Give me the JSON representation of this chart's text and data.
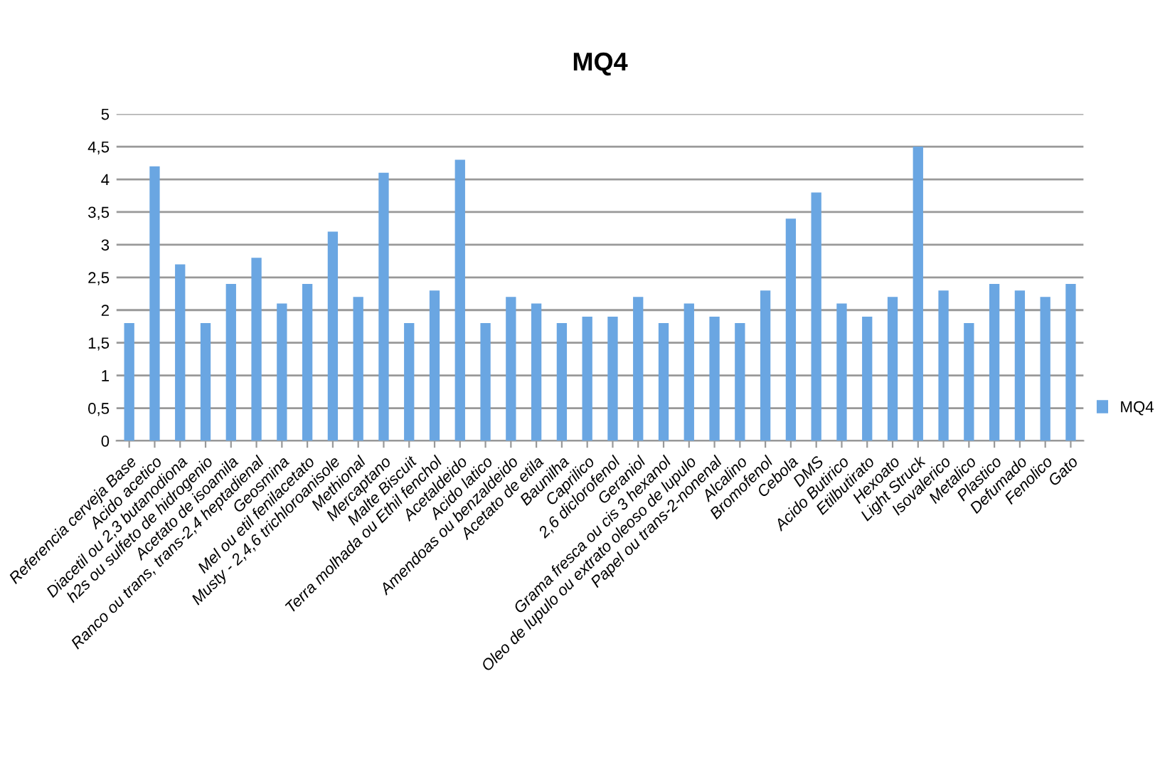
{
  "chart_data": {
    "type": "bar",
    "title": "MQ4",
    "categories": [
      "Referencia cerveja Base",
      "Acido acetico",
      "Diacetil ou 2,3 butanodiona",
      "h2s ou sulfeto de hidrogenio",
      "Acetato de isoamila",
      "Ranco ou trans, trans-2,4 heptadienal",
      "Geosmina",
      "Mel ou etil fenilacetato",
      "Musty - 2,4,6 trichloroanisole",
      "Methional",
      "Mercaptano",
      "Malte Biscuit",
      "Terra molhada ou Ethil fenchol",
      "Acetaldeido",
      "Acido latico",
      "Amendoas ou benzaldeido",
      "Acetato de etila",
      "Baunilha",
      "Caprilico",
      "2,6 diclorofenol",
      "Geraniol",
      "Grama fresca ou cis 3 hexanol",
      "Oleo de lupulo ou extrato oleoso de lupulo",
      "Papel ou trans-2-nonenal",
      "Alcalino",
      "Bromofenol",
      "Cebola",
      "DMS",
      "Acido Butirico",
      "Etilbutirato",
      "Hexoato",
      "Light Struck",
      "Isovalerico",
      "Metalico",
      "Plastico",
      "Defumado",
      "Fenolico",
      "Gato"
    ],
    "series": [
      {
        "name": "MQ4",
        "color": "#6aa6e2",
        "values": [
          1.8,
          4.2,
          2.7,
          1.8,
          2.4,
          2.8,
          2.1,
          2.4,
          3.2,
          2.2,
          4.1,
          1.8,
          2.3,
          4.3,
          1.8,
          2.2,
          2.1,
          1.8,
          1.9,
          1.9,
          2.2,
          1.8,
          2.1,
          1.9,
          1.8,
          2.3,
          3.4,
          3.8,
          2.1,
          1.9,
          2.2,
          4.5,
          2.3,
          1.8,
          2.4,
          2.3,
          2.2,
          2.4
        ]
      }
    ],
    "ylim": [
      0,
      5
    ],
    "yticks": [
      0,
      {
        "value": 0.5,
        "label": "0,5"
      },
      1,
      {
        "value": 1.5,
        "label": "1,5"
      },
      2,
      {
        "value": 2.5,
        "label": "2,5"
      },
      3,
      {
        "value": 3.5,
        "label": "3,5"
      },
      4,
      {
        "value": 4.5,
        "label": "4,5"
      },
      5
    ],
    "grid": "y",
    "legend": "right"
  }
}
